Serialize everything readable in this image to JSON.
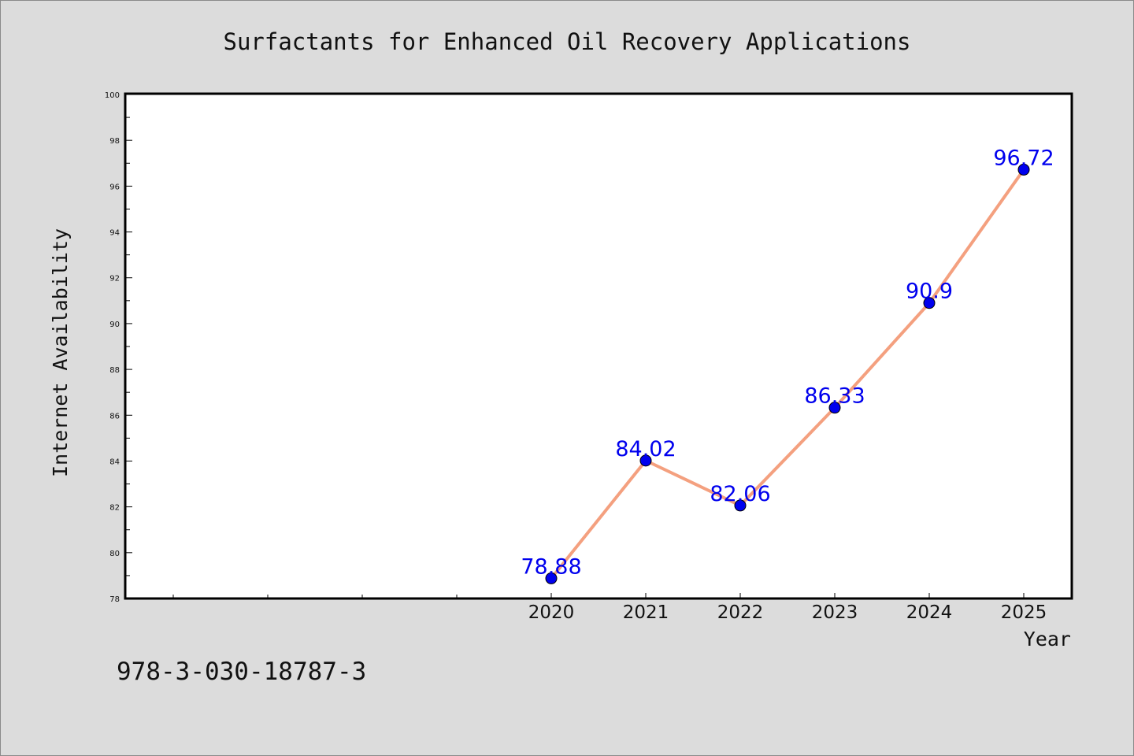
{
  "chart_data": {
    "type": "line",
    "title": "Surfactants for Enhanced Oil Recovery Applications",
    "xlabel": "Year",
    "ylabel": "Internet Availability",
    "categories": [
      "2020",
      "2021",
      "2022",
      "2023",
      "2024",
      "2025"
    ],
    "series": [
      {
        "values": [
          78.88,
          84.02,
          82.06,
          86.33,
          90.9,
          96.72
        ],
        "data_labels": [
          "78.88",
          "84.02",
          "82.06",
          "86.33",
          "90.9",
          "96.72"
        ]
      }
    ],
    "ylim": [
      78,
      100
    ],
    "yticks": [
      "78",
      "80",
      "82",
      "84",
      "86",
      "88",
      "90",
      "92",
      "94",
      "96",
      "98",
      "100"
    ],
    "grid": false,
    "legend": "none",
    "colors": {
      "line": "#f4a07f",
      "marker": "#0000ee",
      "data_label": "#0000ee",
      "background": "#dcdcdc",
      "plot_background": "#ffffff"
    }
  },
  "footer": {
    "isbn": "978-3-030-18787-3"
  }
}
